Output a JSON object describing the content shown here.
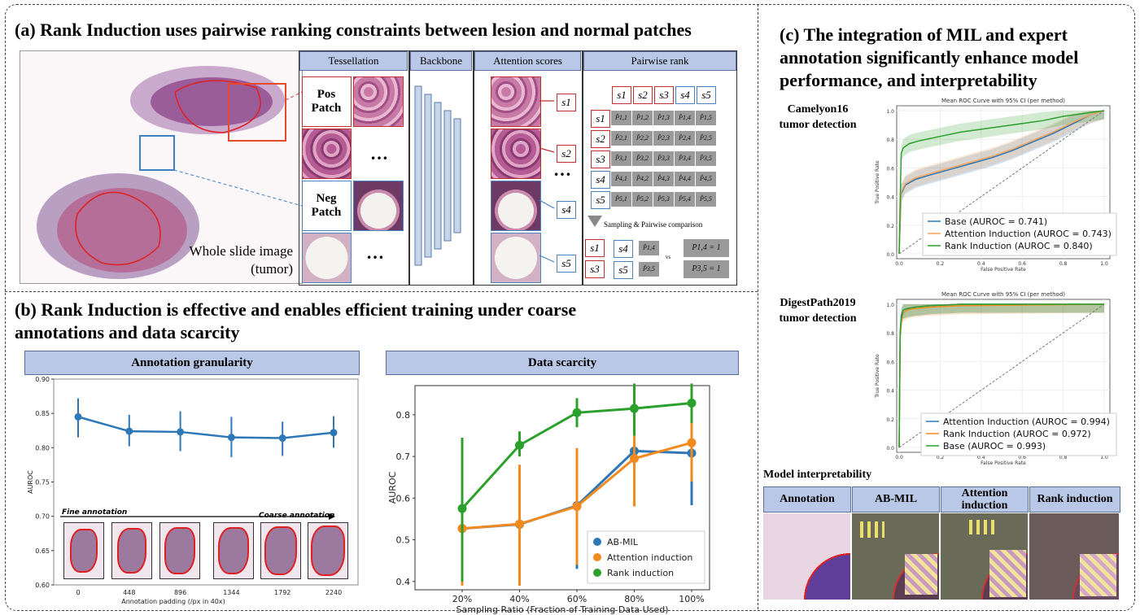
{
  "panel_a": {
    "title": "(a) Rank Induction uses pairwise ranking constraints between lesion and normal patches",
    "headers": [
      "Tessellation",
      "Backbone",
      "Attention scores",
      "Pairwise rank"
    ],
    "pos_patch": "Pos Patch",
    "neg_patch": "Neg Patch",
    "ellipsis": "…",
    "wsi_label_line1": "Whole slide image",
    "wsi_label_line2": "(tumor)",
    "scores": [
      "s1",
      "s2",
      "s3",
      "s4",
      "s5"
    ],
    "matrix_rows": [
      [
        "P̂1,1",
        "P̂1,2",
        "P̂1,3",
        "P̂1,4",
        "P̂1,5"
      ],
      [
        "P̂2,1",
        "P̂2,2",
        "P̂2,3",
        "P̂2,4",
        "P̂2,5"
      ],
      [
        "P̂3,1",
        "P̂3,2",
        "P̂3,3",
        "P̂3,4",
        "P̂3,5"
      ],
      [
        "P̂4,1",
        "P̂4,2",
        "P̂4,3",
        "P̂4,4",
        "P̂4,5"
      ],
      [
        "P̂5,1",
        "P̂5,2",
        "P̂5,3",
        "P̂5,4",
        "P̂5,5"
      ]
    ],
    "sampling_label": "Sampling & Pairwise comparison",
    "comparisons": [
      {
        "left": "s1",
        "right": "s4",
        "pred": "P̂1,4",
        "vs": "vs",
        "target": "P1,4 = 1"
      },
      {
        "left": "s3",
        "right": "s5",
        "pred": "P̂3,5",
        "vs": "",
        "target": "P3,5 = 1"
      }
    ]
  },
  "panel_b": {
    "title_line1": "(b) Rank Induction is effective and enables efficient training under coarse",
    "title_line2": "annotations and data scarcity",
    "left_header": "Annotation granularity",
    "right_header": "Data scarcity",
    "fine_label": "Fine annotation",
    "coarse_label": "Coarse annotation"
  },
  "panel_c": {
    "title_line1": "(c) The integration of MIL and expert",
    "title_line2": "annotation significantly enhance model",
    "title_line3": "performance, and interpretability",
    "camelyon_line1": "Camelyon16",
    "camelyon_line2": "tumor detection",
    "digest_line1": "DigestPath2019",
    "digest_line2": "tumor detection",
    "interp_title": "Model interpretability",
    "interp_headers": [
      "Annotation",
      "AB-MIL",
      "Attention induction",
      "Rank induction"
    ]
  },
  "chart_data": [
    {
      "id": "annotation_granularity",
      "type": "line",
      "xlabel": "Annotation padding (/px in 40x)",
      "ylabel": "AUROC",
      "categories": [
        "0",
        "448",
        "896",
        "1344",
        "1792",
        "2240"
      ],
      "values": [
        0.845,
        0.824,
        0.823,
        0.815,
        0.814,
        0.822
      ],
      "err_low": [
        0.815,
        0.802,
        0.795,
        0.786,
        0.788,
        0.8
      ],
      "err_high": [
        0.872,
        0.848,
        0.853,
        0.845,
        0.838,
        0.846
      ],
      "ylim": [
        0.6,
        0.9
      ],
      "yticks": [
        "0.60",
        "0.65",
        "0.70",
        "0.75",
        "0.80",
        "0.85",
        "0.90"
      ],
      "color": "#2e78b7"
    },
    {
      "id": "data_scarcity",
      "type": "line",
      "xlabel": "Sampling Ratio (Fraction of Training Data Used)",
      "ylabel": "AUROC",
      "categories": [
        "20%",
        "40%",
        "60%",
        "80%",
        "100%"
      ],
      "ylim": [
        0.38,
        0.87
      ],
      "yticks": [
        "0.4",
        "0.5",
        "0.6",
        "0.7",
        "0.8"
      ],
      "legend_position": "lower-right",
      "series": [
        {
          "name": "AB-MIL",
          "color": "#2e78b7",
          "values": [
            0.527,
            0.537,
            0.582,
            0.713,
            0.708
          ],
          "err_low": [
            0.4,
            0.4,
            0.43,
            0.6,
            0.583
          ],
          "err_high": [
            0.65,
            0.68,
            0.72,
            0.8,
            0.79
          ]
        },
        {
          "name": "Attention induction",
          "color": "#f28a1e",
          "values": [
            0.527,
            0.538,
            0.58,
            0.695,
            0.733
          ],
          "err_low": [
            0.39,
            0.39,
            0.44,
            0.58,
            0.64
          ],
          "err_high": [
            0.66,
            0.68,
            0.72,
            0.8,
            0.79
          ]
        },
        {
          "name": "Rank induction",
          "color": "#2ca02c",
          "values": [
            0.575,
            0.727,
            0.805,
            0.815,
            0.828
          ],
          "err_low": [
            0.4,
            0.7,
            0.77,
            0.75,
            0.78
          ],
          "err_high": [
            0.745,
            0.76,
            0.84,
            0.875,
            0.875
          ]
        }
      ]
    },
    {
      "id": "camelyon16_roc",
      "type": "line",
      "title": "Mean ROC Curve with 95% CI (per method)",
      "xlabel": "False Positive Rate",
      "ylabel": "True Positive Rate",
      "xlim": [
        0,
        1
      ],
      "ylim": [
        0,
        1
      ],
      "xticks": [
        "0.0",
        "0.2",
        "0.4",
        "0.6",
        "0.8",
        "1.0"
      ],
      "yticks": [
        "0.0",
        "0.2",
        "0.4",
        "0.6",
        "0.8",
        "1.0"
      ],
      "series": [
        {
          "name": "Base (AUROC = 0.741)",
          "color": "#2e78b7",
          "x": [
            0,
            0.01,
            0.03,
            0.08,
            0.15,
            0.25,
            0.35,
            0.45,
            0.55,
            0.65,
            0.75,
            0.85,
            0.93,
            1.0
          ],
          "y": [
            0,
            0.42,
            0.48,
            0.52,
            0.55,
            0.59,
            0.63,
            0.67,
            0.72,
            0.78,
            0.84,
            0.91,
            0.97,
            1.0
          ]
        },
        {
          "name": "Attention Induction (AUROC = 0.743)",
          "color": "#f5a45a",
          "x": [
            0,
            0.01,
            0.03,
            0.08,
            0.15,
            0.25,
            0.35,
            0.45,
            0.55,
            0.65,
            0.75,
            0.85,
            0.93,
            1.0
          ],
          "y": [
            0,
            0.43,
            0.49,
            0.53,
            0.56,
            0.6,
            0.64,
            0.68,
            0.73,
            0.79,
            0.85,
            0.92,
            0.97,
            1.0
          ]
        },
        {
          "name": "Rank Induction (AUROC = 0.840)",
          "color": "#2ca02c",
          "x": [
            0,
            0.01,
            0.02,
            0.05,
            0.1,
            0.2,
            0.3,
            0.4,
            0.5,
            0.6,
            0.7,
            0.8,
            0.9,
            1.0
          ],
          "y": [
            0,
            0.7,
            0.74,
            0.77,
            0.79,
            0.82,
            0.85,
            0.87,
            0.89,
            0.91,
            0.93,
            0.96,
            0.98,
            1.0
          ]
        }
      ]
    },
    {
      "id": "digestpath2019_roc",
      "type": "line",
      "title": "Mean ROC Curve with 95% CI (per method)",
      "xlabel": "False Positive Rate",
      "ylabel": "True Positive Rate",
      "xlim": [
        0,
        1
      ],
      "ylim": [
        0,
        1
      ],
      "xticks": [
        "0.0",
        "0.2",
        "0.4",
        "0.6",
        "0.8",
        "1.0"
      ],
      "yticks": [
        "0.0",
        "0.2",
        "0.4",
        "0.6",
        "0.8",
        "1.0"
      ],
      "series": [
        {
          "name": "Attention Induction (AUROC = 0.994)",
          "color": "#2e78b7",
          "x": [
            0,
            0.005,
            0.01,
            0.02,
            0.04,
            0.08,
            0.15,
            0.3,
            1.0
          ],
          "y": [
            0,
            0.8,
            0.92,
            0.96,
            0.97,
            0.98,
            0.99,
            1.0,
            1.0
          ]
        },
        {
          "name": "Rank Induction (AUROC = 0.972)",
          "color": "#f28a1e",
          "x": [
            0,
            0.005,
            0.01,
            0.02,
            0.04,
            0.08,
            0.15,
            0.3,
            1.0
          ],
          "y": [
            0,
            0.75,
            0.88,
            0.94,
            0.96,
            0.97,
            0.98,
            0.99,
            1.0
          ]
        },
        {
          "name": "Base (AUROC = 0.993)",
          "color": "#2ca02c",
          "x": [
            0,
            0.005,
            0.01,
            0.02,
            0.04,
            0.08,
            0.15,
            0.3,
            1.0
          ],
          "y": [
            0,
            0.78,
            0.9,
            0.96,
            0.97,
            0.98,
            0.99,
            1.0,
            1.0
          ]
        }
      ]
    }
  ]
}
